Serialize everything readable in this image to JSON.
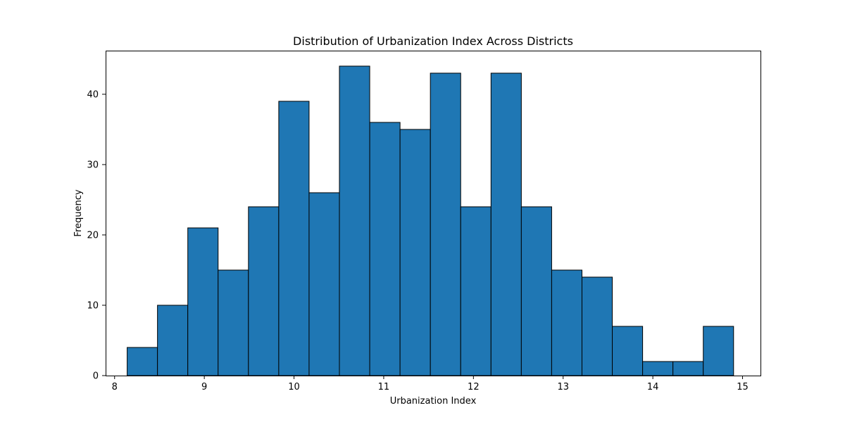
{
  "chart_data": {
    "type": "bar",
    "title": "Distribution of Urbanization Index Across Districts",
    "xlabel": "Urbanization Index",
    "ylabel": "Frequency",
    "bar_color": "#1f77b4",
    "edge_color": "#000000",
    "grid": false,
    "xlim": [
      7.9,
      15.2
    ],
    "ylim": [
      0,
      46.2
    ],
    "xticks": [
      8,
      9,
      10,
      11,
      12,
      13,
      14,
      15
    ],
    "yticks": [
      0,
      10,
      20,
      30,
      40
    ],
    "bin_edges": [
      8.14,
      8.478,
      8.816,
      9.154,
      9.492,
      9.83,
      10.168,
      10.506,
      10.844,
      11.182,
      11.52,
      11.858,
      12.196,
      12.534,
      12.872,
      13.21,
      13.548,
      13.886,
      14.224,
      14.562,
      14.9
    ],
    "values": [
      4,
      10,
      21,
      15,
      24,
      39,
      26,
      44,
      36,
      35,
      43,
      24,
      43,
      24,
      15,
      14,
      7,
      2,
      2,
      7
    ]
  }
}
